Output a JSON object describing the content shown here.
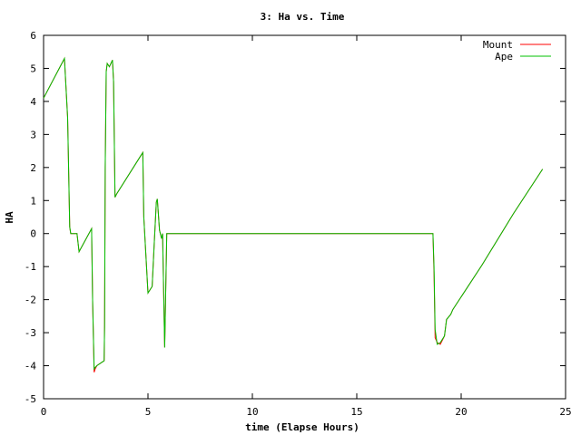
{
  "chart_data": {
    "type": "line",
    "title": "3: Ha vs. Time",
    "xlabel": "time (Elapse Hours)",
    "ylabel": "HA",
    "xlim": [
      0,
      25
    ],
    "ylim": [
      -5,
      6
    ],
    "xticks": [
      0,
      5,
      10,
      15,
      20,
      25
    ],
    "yticks": [
      -5,
      -4,
      -3,
      -2,
      -1,
      0,
      1,
      2,
      3,
      4,
      5,
      6
    ],
    "grid": false,
    "legend_position": "top-right",
    "series": [
      {
        "name": "Mount",
        "color": "#ff0000",
        "x": [
          0,
          1.0,
          1.15,
          1.25,
          1.3,
          1.45,
          1.6,
          1.7,
          2.3,
          2.35,
          2.42,
          2.47,
          2.55,
          2.9,
          2.92,
          2.95,
          3.0,
          3.05,
          3.15,
          3.3,
          3.35,
          3.42,
          3.5,
          4.7,
          4.75,
          4.8,
          5.0,
          5.2,
          5.3,
          5.4,
          5.45,
          5.55,
          5.65,
          5.7,
          5.75,
          5.8,
          5.9,
          18.65,
          18.7,
          18.75,
          18.85,
          19.0,
          19.2,
          19.3,
          19.5,
          19.6,
          21.0,
          22.5,
          23.9
        ],
        "y": [
          4.1,
          5.3,
          3.5,
          0.2,
          0,
          0,
          0,
          -0.55,
          0.15,
          -2.0,
          -4.2,
          -4.1,
          -4.0,
          -3.85,
          -2.8,
          2.0,
          4.9,
          5.15,
          5.05,
          5.25,
          4.6,
          1.1,
          1.2,
          2.4,
          2.45,
          0.5,
          -1.8,
          -1.6,
          -0.3,
          0.95,
          1.05,
          0.1,
          -0.15,
          0,
          -1.8,
          -3.45,
          0,
          0,
          -1.2,
          -3.15,
          -3.3,
          -3.35,
          -3.1,
          -2.6,
          -2.45,
          -2.3,
          -0.95,
          0.6,
          1.95
        ]
      },
      {
        "name": "Ape",
        "color": "#00c000",
        "x": [
          0,
          1.0,
          1.15,
          1.25,
          1.3,
          1.45,
          1.6,
          1.7,
          2.3,
          2.35,
          2.42,
          2.47,
          2.55,
          2.9,
          2.92,
          2.95,
          3.0,
          3.05,
          3.15,
          3.3,
          3.35,
          3.42,
          3.5,
          4.7,
          4.75,
          4.8,
          5.0,
          5.2,
          5.3,
          5.4,
          5.45,
          5.55,
          5.65,
          5.7,
          5.75,
          5.8,
          5.9,
          18.65,
          18.7,
          18.75,
          18.85,
          19.0,
          19.2,
          19.3,
          19.5,
          19.6,
          21.0,
          22.5,
          23.9
        ],
        "y": [
          4.1,
          5.3,
          3.5,
          0.2,
          0,
          0,
          0,
          -0.55,
          0.15,
          -2.0,
          -4.1,
          -4.05,
          -4.0,
          -3.85,
          -2.8,
          2.0,
          4.9,
          5.15,
          5.05,
          5.25,
          4.6,
          1.1,
          1.2,
          2.4,
          2.45,
          0.5,
          -1.8,
          -1.6,
          -0.3,
          0.95,
          1.05,
          0.1,
          -0.15,
          0,
          -1.8,
          -3.45,
          0,
          0,
          -1.0,
          -2.9,
          -3.35,
          -3.3,
          -3.1,
          -2.6,
          -2.45,
          -2.3,
          -0.95,
          0.6,
          1.95
        ]
      }
    ]
  }
}
